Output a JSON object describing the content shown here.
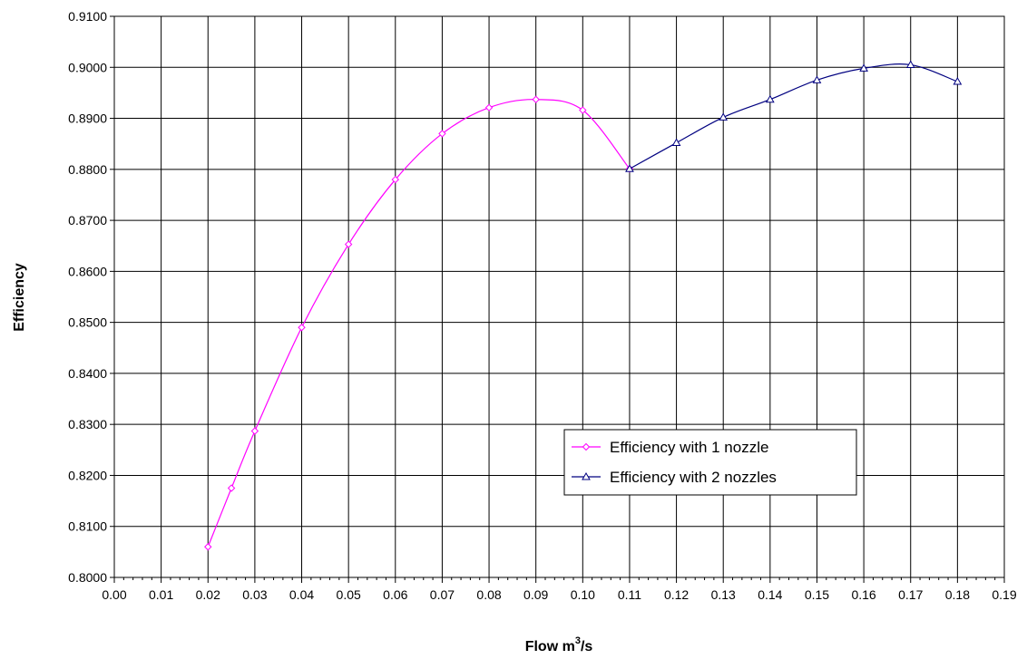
{
  "chart_data": {
    "type": "line",
    "title": "",
    "xlabel": "Flow m",
    "xlabel_sup": "3",
    "xlabel_tail": "/s",
    "ylabel": "Efficiency",
    "xlim": [
      0.0,
      0.19
    ],
    "ylim": [
      0.8,
      0.91
    ],
    "x_ticks": [
      "0.00",
      "0.01",
      "0.02",
      "0.03",
      "0.04",
      "0.05",
      "0.06",
      "0.07",
      "0.08",
      "0.09",
      "0.10",
      "0.11",
      "0.12",
      "0.13",
      "0.14",
      "0.15",
      "0.16",
      "0.17",
      "0.18",
      "0.19"
    ],
    "y_ticks": [
      "0.8000",
      "0.8100",
      "0.8200",
      "0.8300",
      "0.8400",
      "0.8500",
      "0.8600",
      "0.8700",
      "0.8800",
      "0.8900",
      "0.9000",
      "0.9100"
    ],
    "grid": true,
    "legend_position": "lower-right",
    "series": [
      {
        "name": "Efficiency with 1 nozzle",
        "color": "#ff00ff",
        "marker": "diamond",
        "x": [
          0.02,
          0.025,
          0.03,
          0.04,
          0.05,
          0.06,
          0.07,
          0.08,
          0.09,
          0.1,
          0.11
        ],
        "y": [
          0.806,
          0.8175,
          0.8287,
          0.849,
          0.8653,
          0.878,
          0.887,
          0.8921,
          0.8937,
          0.8916,
          0.8801
        ]
      },
      {
        "name": "Efficiency with 2 nozzles",
        "color": "#000080",
        "marker": "triangle",
        "x": [
          0.11,
          0.12,
          0.13,
          0.14,
          0.15,
          0.16,
          0.17,
          0.18
        ],
        "y": [
          0.8801,
          0.8852,
          0.8902,
          0.8937,
          0.8975,
          0.8998,
          0.9005,
          0.8972
        ]
      }
    ]
  }
}
